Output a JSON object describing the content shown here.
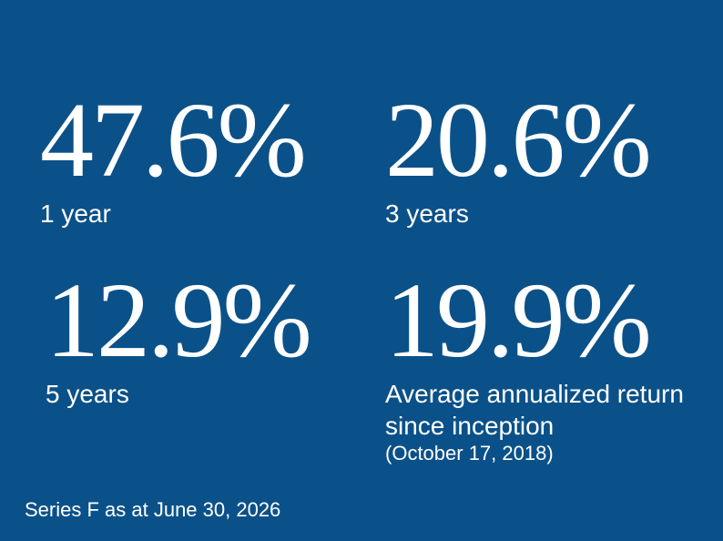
{
  "stats": [
    {
      "value": "47.6%",
      "label": "1 year"
    },
    {
      "value": "20.6%",
      "label": "3 years"
    },
    {
      "value": "12.9%",
      "label": "5 years"
    },
    {
      "value": "19.9%",
      "label": "Average annualized return since inception",
      "note": "(October 17, 2018)"
    }
  ],
  "footer": "Series F as at June 30, 2026"
}
